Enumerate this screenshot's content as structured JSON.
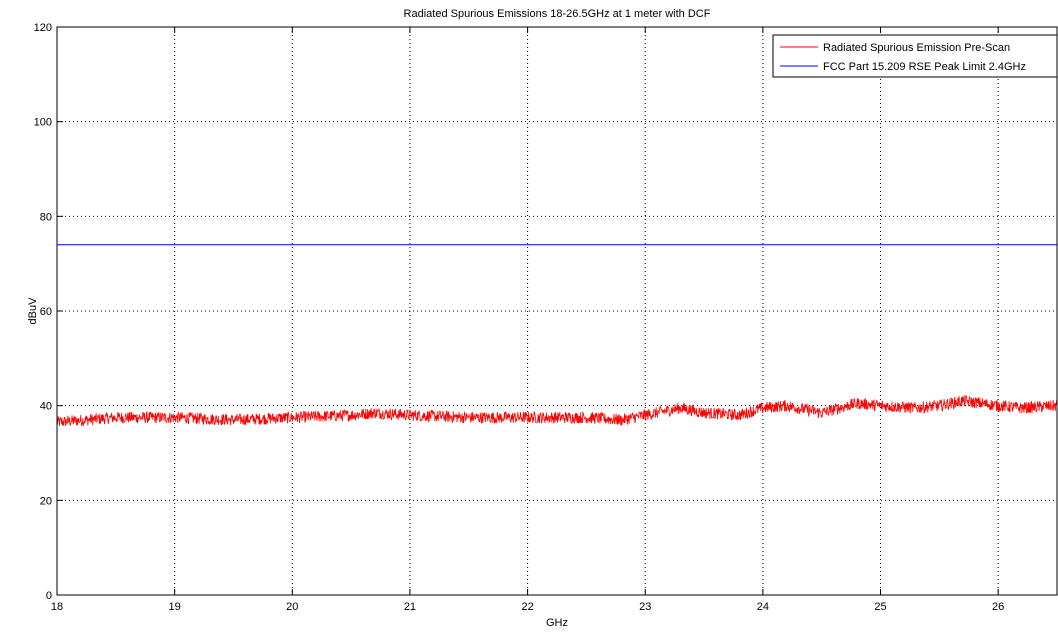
{
  "chart_data": {
    "type": "line",
    "title": "Radiated Spurious Emissions 18-26.5GHz at 1 meter with DCF",
    "xlabel": "GHz",
    "ylabel": "dBuV",
    "xlim": [
      18,
      26.5
    ],
    "ylim": [
      0,
      120
    ],
    "xticks": [
      18,
      19,
      20,
      21,
      22,
      23,
      24,
      25,
      26
    ],
    "yticks": [
      0,
      20,
      40,
      60,
      80,
      100,
      120
    ],
    "grid": true,
    "legend_position": "top-right",
    "series": [
      {
        "name": "Radiated Spurious Emission Pre-Scan",
        "color": "#ff0000",
        "style": "noisy-trace",
        "noise_band": 2.5,
        "x": [
          18.0,
          18.5,
          19.0,
          19.5,
          20.0,
          20.5,
          20.7,
          21.0,
          21.5,
          22.0,
          22.5,
          22.8,
          23.0,
          23.3,
          23.5,
          23.8,
          24.0,
          24.2,
          24.5,
          24.8,
          25.0,
          25.3,
          25.5,
          25.7,
          26.0,
          26.2,
          26.5
        ],
        "values": [
          36.5,
          37.5,
          37.5,
          37.0,
          37.5,
          38.0,
          38.5,
          38.0,
          37.5,
          37.5,
          37.5,
          37.0,
          38.0,
          39.5,
          38.5,
          38.0,
          39.5,
          40.0,
          38.5,
          40.5,
          40.0,
          39.5,
          40.0,
          41.0,
          40.0,
          39.5,
          40.0
        ]
      },
      {
        "name": "FCC Part 15.209 RSE Peak Limit 2.4GHz",
        "color": "#0000ff",
        "style": "solid",
        "x": [
          18,
          26.5
        ],
        "values": [
          74,
          74
        ]
      }
    ]
  }
}
